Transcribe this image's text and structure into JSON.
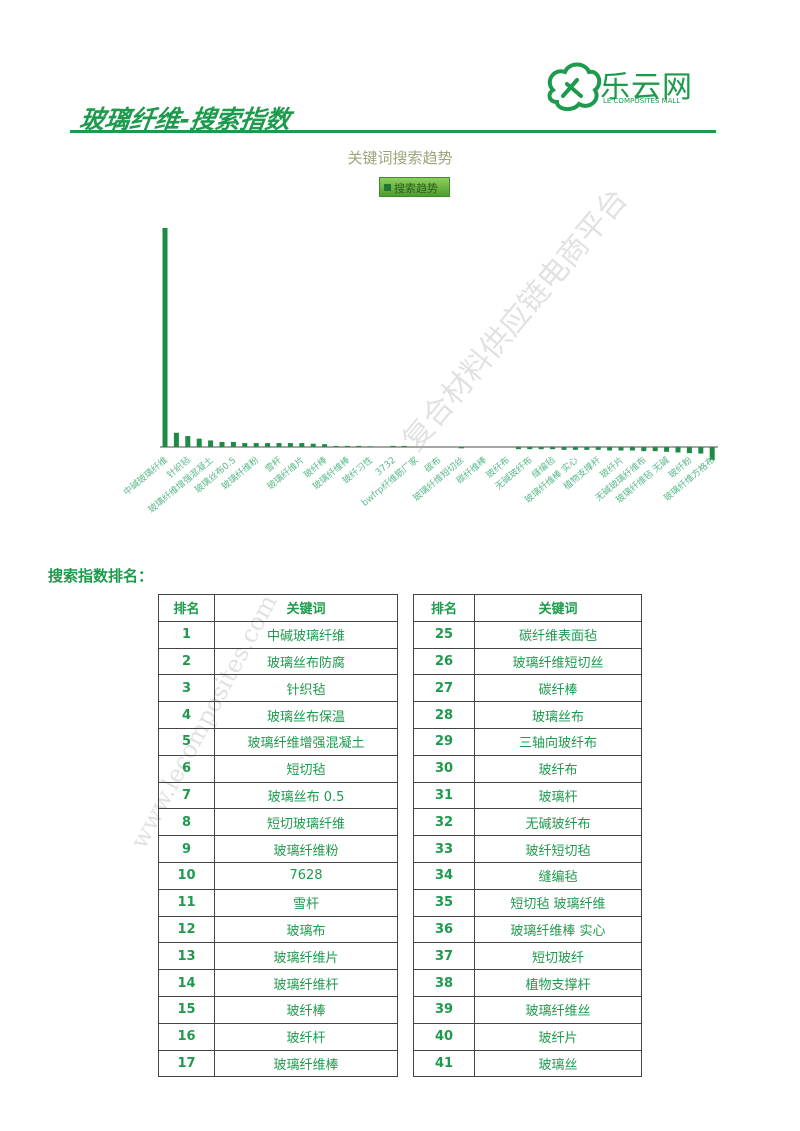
{
  "header": {
    "title": "玻璃纤维-搜索指数",
    "logo_text": "乐云网",
    "logo_subtitle": "LE COMPOSITES MALL"
  },
  "watermarks": [
    "复合材料供应链电商平台",
    "www.lecomposites.com"
  ],
  "chart_data": {
    "type": "bar",
    "title": "关键词搜索趋势",
    "legend": {
      "label": "搜索趋势",
      "placement": "top-center"
    },
    "grid": false,
    "bar_color": "#1d8a45",
    "categories": [
      "中碱玻璃纤维",
      "",
      "针织毡",
      "",
      "玻璃纤维增强混凝土",
      "",
      "玻璃丝布0.5",
      "",
      "玻璃纤维粉",
      "",
      "雪杆",
      "",
      "玻璃纤维片",
      "",
      "玻纤棒",
      "",
      "玻璃纤维棒",
      "",
      "玻纤习性",
      "",
      "3732",
      "",
      "bwfrp纤维筋厂家",
      "",
      "碳布",
      "",
      "玻璃纤维短切丝",
      "",
      "碳纤维棒",
      "",
      "玻纤布",
      "",
      "无碱玻纤布",
      "",
      "缝编毡",
      "",
      "玻璃纤维棒 实心",
      "",
      "植物支撑杆",
      "",
      "玻纤片",
      "",
      "无碱玻璃纤维布",
      "",
      "玻璃纤维毡 无碱",
      "",
      "玻纤粉",
      "",
      "玻璃纤维方格布"
    ],
    "values": [
      100,
      6.5,
      5,
      3.8,
      3,
      2.3,
      2.3,
      1.8,
      1.8,
      1.8,
      1.8,
      1.8,
      1.8,
      1.5,
      1.3,
      0.5,
      0.5,
      0.5,
      0.3,
      0,
      0.5,
      0.5,
      0,
      0,
      0,
      0,
      -0.6,
      0,
      0,
      0,
      0,
      -1,
      -1,
      -1,
      -1,
      -1.3,
      -1.3,
      -1.3,
      -1.3,
      -1.6,
      -1.6,
      -1.6,
      -1.9,
      -1.9,
      -2.2,
      -2.5,
      -2.8,
      -3,
      -6
    ]
  },
  "ranking": {
    "heading": "搜索指数排名：",
    "headers": [
      "排名",
      "关键词"
    ],
    "left": [
      [
        "1",
        "中碱玻璃纤维"
      ],
      [
        "2",
        "玻璃丝布防腐"
      ],
      [
        "3",
        "针织毡"
      ],
      [
        "4",
        "玻璃丝布保温"
      ],
      [
        "5",
        "玻璃纤维增强混凝土"
      ],
      [
        "6",
        "短切毡"
      ],
      [
        "7",
        "玻璃丝布 0.5"
      ],
      [
        "8",
        "短切玻璃纤维"
      ],
      [
        "9",
        "玻璃纤维粉"
      ],
      [
        "10",
        "7628"
      ],
      [
        "11",
        "雪杆"
      ],
      [
        "12",
        "玻璃布"
      ],
      [
        "13",
        "玻璃纤维片"
      ],
      [
        "14",
        "玻璃纤维杆"
      ],
      [
        "15",
        "玻纤棒"
      ],
      [
        "16",
        "玻纤杆"
      ],
      [
        "17",
        "玻璃纤维棒"
      ]
    ],
    "right": [
      [
        "25",
        "碳纤维表面毡"
      ],
      [
        "26",
        "玻璃纤维短切丝"
      ],
      [
        "27",
        "碳纤棒"
      ],
      [
        "28",
        "玻璃丝布"
      ],
      [
        "29",
        "三轴向玻纤布"
      ],
      [
        "30",
        "玻纤布"
      ],
      [
        "31",
        "玻璃杆"
      ],
      [
        "32",
        "无碱玻纤布"
      ],
      [
        "33",
        "玻纤短切毡"
      ],
      [
        "34",
        "缝编毡"
      ],
      [
        "35",
        "短切毡  玻璃纤维"
      ],
      [
        "36",
        "玻璃纤维棒  实心"
      ],
      [
        "37",
        "短切玻纤"
      ],
      [
        "38",
        "植物支撑杆"
      ],
      [
        "39",
        "玻璃纤维丝"
      ],
      [
        "40",
        "玻纤片"
      ],
      [
        "41",
        "玻璃丝"
      ]
    ]
  }
}
